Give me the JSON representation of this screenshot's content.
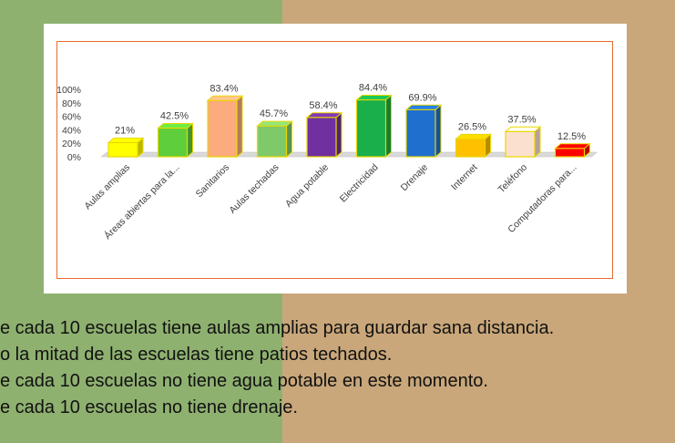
{
  "chart_data": {
    "type": "bar",
    "categories": [
      "Aulas amplias",
      "Áreas abiertas para la...",
      "Sanitarios",
      "Aulas techadas",
      "Agua potable",
      "Electricidad",
      "Drenaje",
      "Internet",
      "Teléfono",
      "Computadoras para..."
    ],
    "values": [
      21,
      42.5,
      83.4,
      45.7,
      58.4,
      84.4,
      69.9,
      26.5,
      37.5,
      12.5
    ],
    "value_labels": [
      "21%",
      "42.5%",
      "83.4%",
      "45.7%",
      "58.4%",
      "84.4%",
      "69.9%",
      "26.5%",
      "37.5%",
      "12.5%"
    ],
    "bar_colors": [
      "#ffff00",
      "#5fce3c",
      "#fbab7e",
      "#7fc96b",
      "#7030a0",
      "#1aaf4a",
      "#1f6fcf",
      "#ffc000",
      "#fbe0cf",
      "#ff0000"
    ],
    "ylim": [
      0,
      100
    ],
    "yticks": [
      0,
      20,
      40,
      60,
      80,
      100
    ],
    "ytick_labels": [
      "0%",
      "20%",
      "40%",
      "60%",
      "80%",
      "100%"
    ],
    "title": "",
    "xlabel": "",
    "ylabel": ""
  },
  "text_lines": [
    "e cada 10 escuelas tiene aulas amplias para guardar sana distancia.",
    "o la mitad de las escuelas tiene patios techados.",
    "e cada 10 escuelas no tiene agua potable en este momento.",
    "e cada 10 escuelas no tiene drenaje."
  ],
  "colors": {
    "frame": "#e46c2a",
    "bar_edge": "#e8d800",
    "left_background": "#8fb170",
    "right_background": "#c9a77a"
  }
}
